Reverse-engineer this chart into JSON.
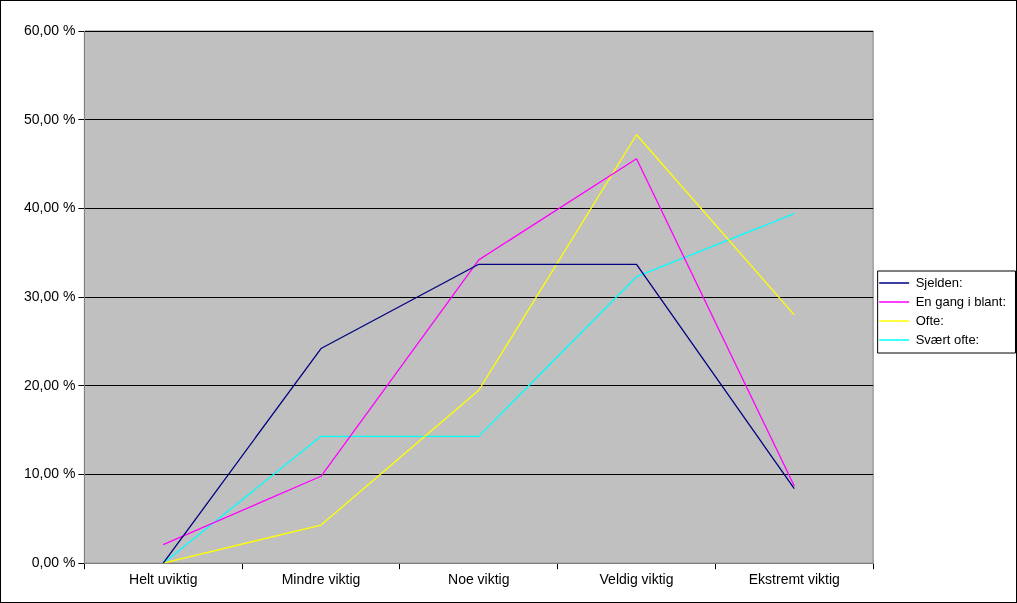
{
  "chart_data": {
    "type": "line",
    "categories": [
      "Helt uviktig",
      "Mindre viktig",
      "Noe viktig",
      "Veldig viktig",
      "Ekstremt viktig"
    ],
    "series": [
      {
        "name": "Sjelden:",
        "color": "#000080",
        "values": [
          0,
          24.2,
          33.7,
          33.7,
          8.4
        ]
      },
      {
        "name": "En gang i blant:",
        "color": "#ff00ff",
        "values": [
          2.1,
          9.8,
          34.2,
          45.6,
          8.7
        ]
      },
      {
        "name": "Ofte:",
        "color": "#ffff00",
        "values": [
          0,
          4.3,
          19.5,
          48.3,
          28.0
        ]
      },
      {
        "name": "Svært ofte:",
        "color": "#00ffff",
        "values": [
          0,
          14.3,
          14.3,
          32.3,
          39.4
        ]
      }
    ],
    "ylim": [
      0,
      60
    ],
    "yticks": [
      {
        "value": 0,
        "label": "0,00 %"
      },
      {
        "value": 10,
        "label": "10,00 %"
      },
      {
        "value": 20,
        "label": "20,00 %"
      },
      {
        "value": 30,
        "label": "30,00 %"
      },
      {
        "value": 40,
        "label": "40,00 %"
      },
      {
        "value": 50,
        "label": "50,00 %"
      },
      {
        "value": 60,
        "label": "60,00 %"
      }
    ],
    "grid": "y",
    "legend": "right",
    "marker": "none",
    "line_style": "solid"
  }
}
